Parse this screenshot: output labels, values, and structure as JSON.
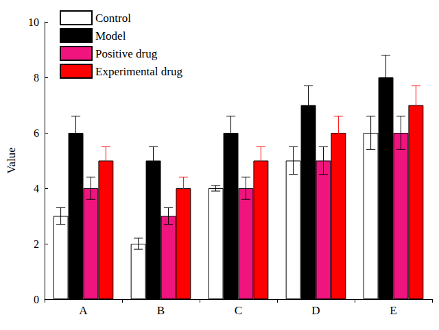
{
  "chart_data": {
    "type": "bar",
    "y_label": "Value",
    "categories": [
      "A",
      "B",
      "C",
      "D",
      "E"
    ],
    "series": [
      {
        "name": "Control",
        "color": "#ffffff",
        "values": [
          3,
          2,
          4,
          5,
          6
        ],
        "errors": [
          0.3,
          0.2,
          0.1,
          0.5,
          0.6
        ]
      },
      {
        "name": "Model",
        "color": "#000000",
        "values": [
          6,
          5,
          6,
          7,
          8
        ],
        "errors": [
          0.6,
          0.5,
          0.6,
          0.7,
          0.8
        ]
      },
      {
        "name": "Positive drug",
        "color": "#f0147f",
        "values": [
          4,
          3,
          4,
          5,
          6
        ],
        "errors": [
          0.4,
          0.3,
          0.4,
          0.5,
          0.6
        ]
      },
      {
        "name": "Experimental drug",
        "color": "#ff0000",
        "values": [
          5,
          4,
          5,
          6,
          7
        ],
        "errors": [
          0.5,
          0.4,
          0.5,
          0.6,
          0.7
        ]
      }
    ],
    "ylim": [
      0,
      10
    ],
    "yticks": [
      0,
      2,
      4,
      6,
      8,
      10
    ],
    "grid": false,
    "legend": "upper left"
  }
}
